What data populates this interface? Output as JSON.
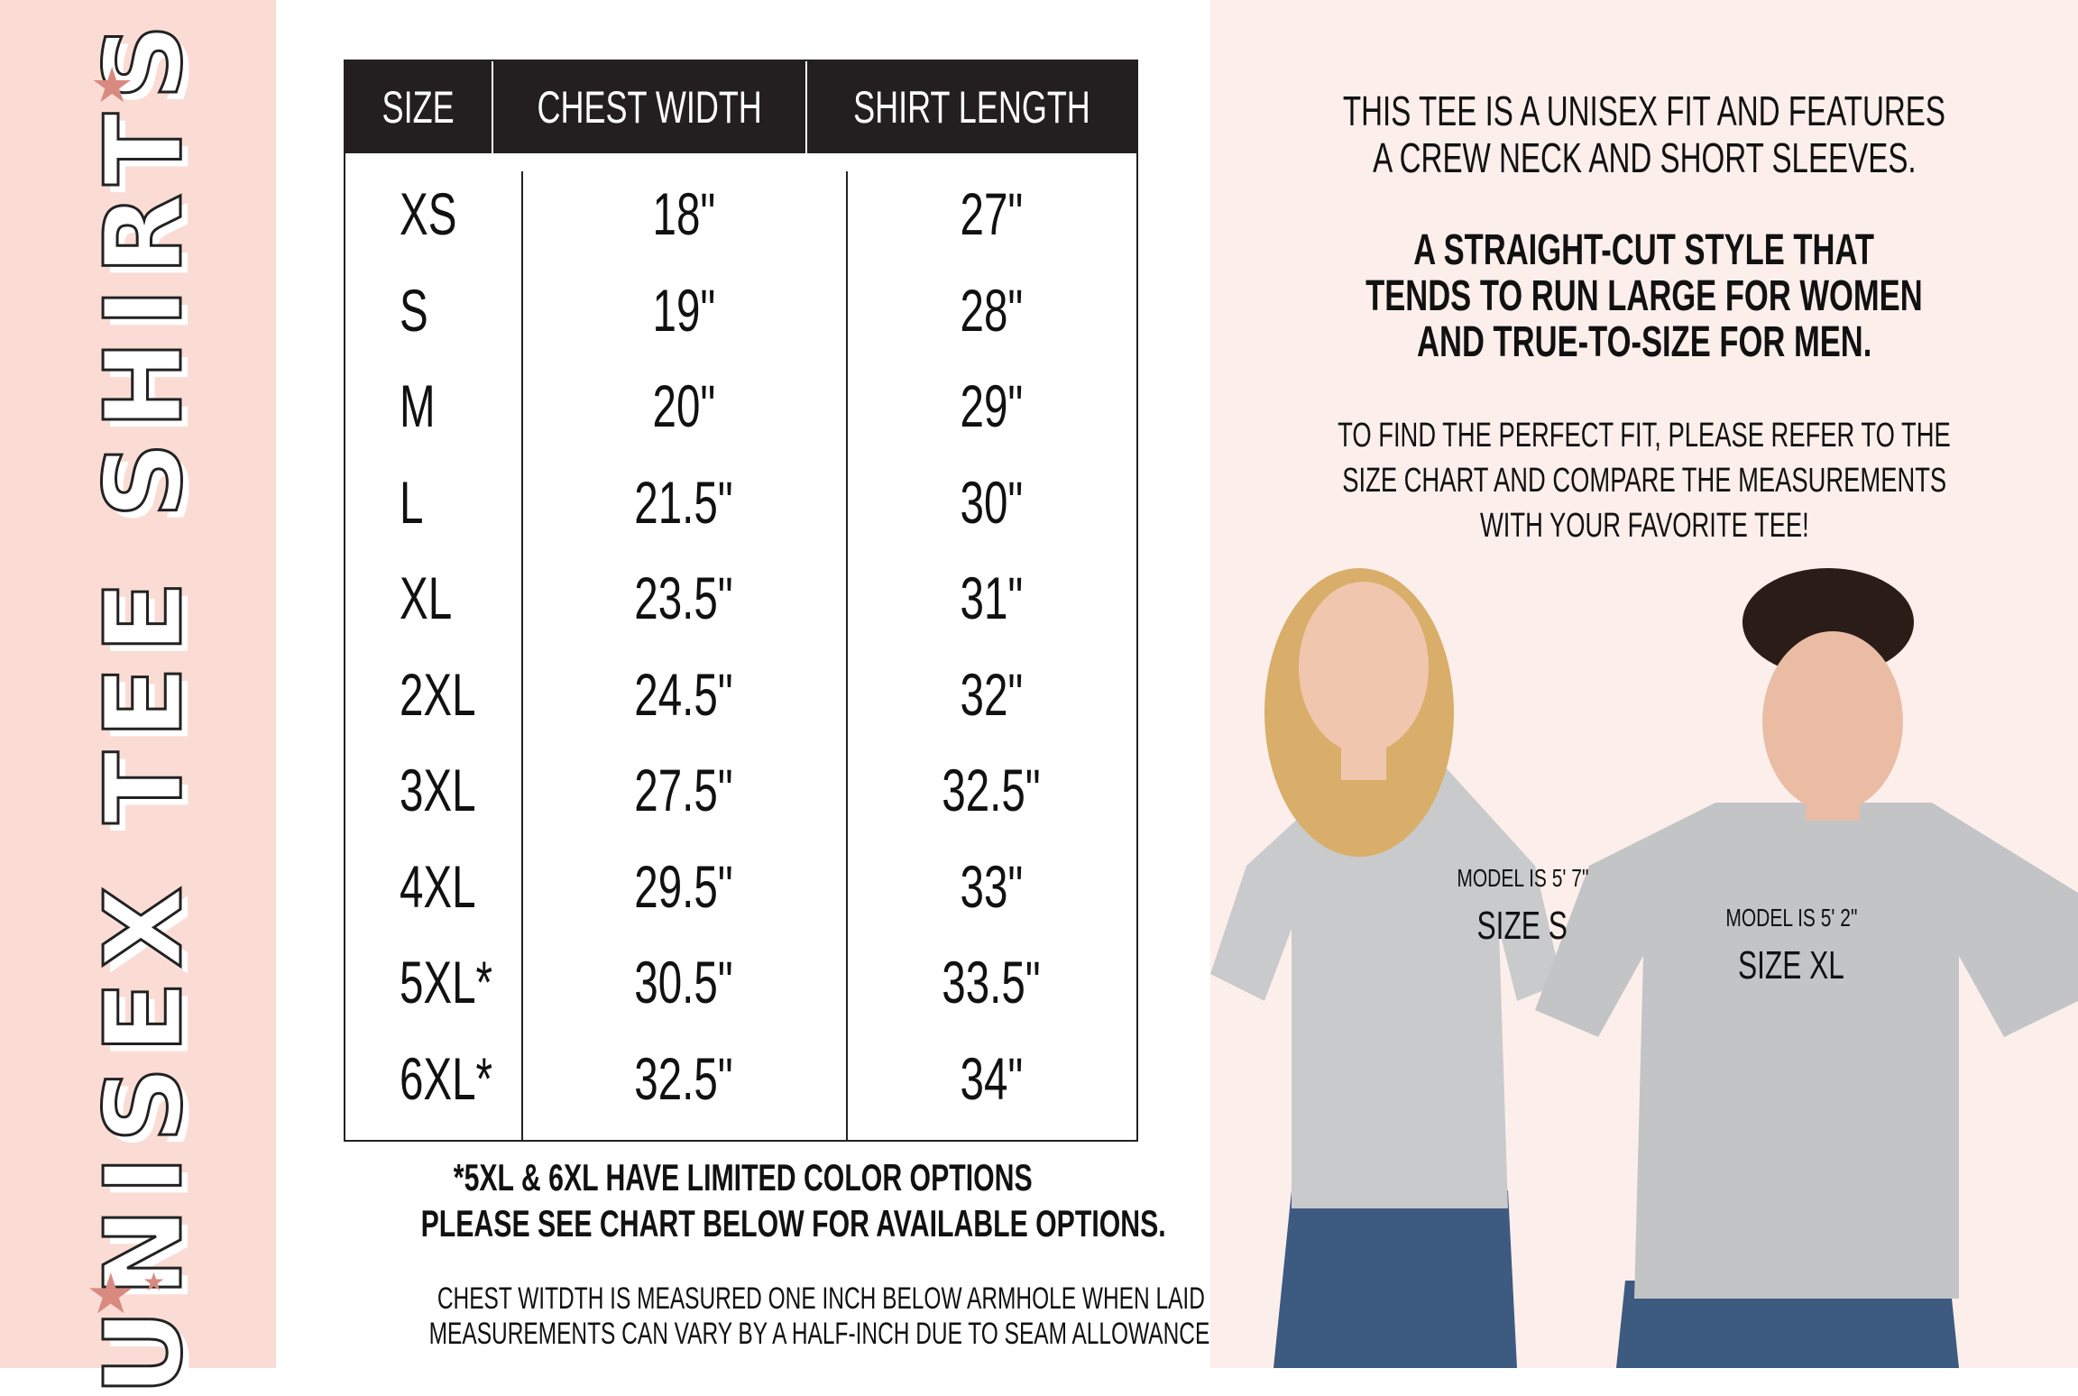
{
  "sidebar": {
    "title": "UNISEX TEE SHIRTS",
    "accent": "#d98a80",
    "background": "#fbdcd5",
    "star_icon": "star"
  },
  "table": {
    "headers": [
      "SIZE",
      "CHEST WIDTH",
      "SHIRT LENGTH"
    ],
    "rows": [
      [
        "XS",
        "18\"",
        "27\""
      ],
      [
        "S",
        "19\"",
        "28\""
      ],
      [
        "M",
        "20\"",
        "29\""
      ],
      [
        "L",
        "21.5\"",
        "30\""
      ],
      [
        "XL",
        "23.5\"",
        "31\""
      ],
      [
        "2XL",
        "24.5\"",
        "32\""
      ],
      [
        "3XL",
        "27.5\"",
        "32.5\""
      ],
      [
        "4XL",
        "29.5\"",
        "33\""
      ],
      [
        "5XL*",
        "30.5\"",
        "33.5\""
      ],
      [
        "6XL*",
        "32.5\"",
        "34\""
      ]
    ]
  },
  "notes": {
    "limited_1": "*5XL & 6XL HAVE LIMITED COLOR OPTIONS",
    "limited_2": "PLEASE SEE CHART BELOW FOR AVAILABLE OPTIONS.",
    "measure_1": "CHEST WITDTH IS MEASURED ONE INCH BELOW ARMHOLE WHEN LAID FLAT.",
    "measure_2": "MEASUREMENTS CAN VARY BY A HALF-INCH DUE TO SEAM ALLOWANCE."
  },
  "info": {
    "p1": [
      "THIS TEE IS A UNISEX FIT AND FEATURES",
      "A CREW NECK AND SHORT SLEEVES."
    ],
    "p2": [
      "A STRAIGHT-CUT STYLE THAT",
      "TENDS TO RUN LARGE FOR WOMEN",
      "AND TRUE-TO-SIZE FOR MEN."
    ],
    "p3": [
      "TO FIND THE PERFECT FIT, PLEASE REFER TO THE",
      "SIZE CHART AND COMPARE THE MEASUREMENTS",
      "WITH YOUR FAVORITE TEE!"
    ]
  },
  "models": [
    {
      "height": "MODEL IS 5' 7\"",
      "size": "SIZE S"
    },
    {
      "height": "MODEL IS 5' 2\"",
      "size": "SIZE XL"
    }
  ]
}
